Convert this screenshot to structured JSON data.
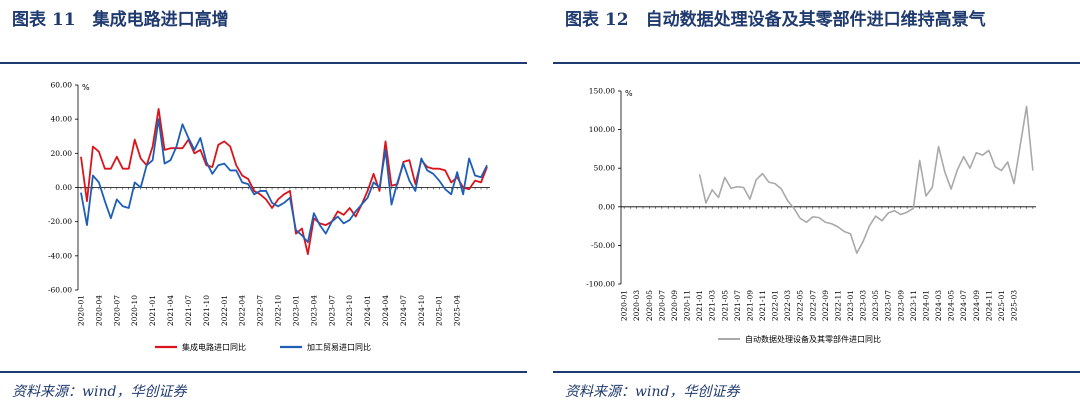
{
  "left": {
    "figure_title": "图表 11　集成电路进口高增",
    "source": "资料来源：wind，华创证券"
  },
  "right": {
    "figure_title": "图表 12　自动数据处理设备及其零部件进口维持高景气",
    "source": "资料来源：wind，华创证券"
  },
  "colors": {
    "red": "#d9151b",
    "blue": "#1d5fb8",
    "gray": "#a9a9a9",
    "accent": "#1f3a6e"
  },
  "chart_data": [
    {
      "type": "line",
      "unit": "%",
      "ylim": [
        -60,
        60
      ],
      "yticks": [
        "-60.00",
        "-40.00",
        "-20.00",
        "0.00",
        "20.00",
        "40.00",
        "60.00"
      ],
      "xticks": [
        "2020-01",
        "2020-04",
        "2020-07",
        "2020-10",
        "2021-01",
        "2021-04",
        "2021-07",
        "2021-10",
        "2022-01",
        "2022-04",
        "2022-07",
        "2022-10",
        "2023-01",
        "2023-04",
        "2023-07",
        "2023-10",
        "2024-01",
        "2024-04",
        "2024-07",
        "2024-10",
        "2025-01",
        "2025-04"
      ],
      "legend_position": "bottom",
      "series": [
        {
          "name": "集成电路进口同比",
          "color": "#d9151b",
          "values": [
            18,
            -8,
            24,
            21,
            11,
            11,
            18,
            11,
            11,
            28,
            17,
            13,
            24,
            46,
            22,
            23,
            23,
            23,
            28,
            20,
            22,
            13,
            12,
            25,
            27,
            24,
            13,
            7,
            5,
            -2,
            -4,
            -7,
            -12,
            -7,
            -4,
            -2,
            -27,
            -24,
            -39,
            -18,
            -21,
            -22,
            -20,
            -14,
            -16,
            -12,
            -17,
            -10,
            -2,
            8,
            -2,
            27,
            1,
            2,
            15,
            16,
            2,
            16,
            12,
            11,
            11,
            10,
            3,
            6,
            0,
            -1,
            4,
            3,
            12
          ]
        },
        {
          "name": "加工贸易进口同比",
          "color": "#1d5fb8",
          "values": [
            -3,
            -22,
            7,
            3,
            -8,
            -18,
            -7,
            -11,
            -12,
            3,
            0,
            13,
            16,
            40,
            14,
            16,
            24,
            37,
            29,
            22,
            29,
            15,
            8,
            13,
            14,
            10,
            10,
            3,
            2,
            -4,
            -2,
            -2,
            -9,
            -11,
            -9,
            -6,
            -25,
            -28,
            -32,
            -15,
            -22,
            -27,
            -20,
            -17,
            -21,
            -19,
            -14,
            -10,
            -6,
            3,
            0,
            22,
            -10,
            3,
            14,
            4,
            -2,
            17,
            10,
            8,
            4,
            -1,
            -4,
            9,
            -4,
            17,
            7,
            6,
            13
          ]
        }
      ]
    },
    {
      "type": "line",
      "unit": "%",
      "ylim": [
        -100,
        150
      ],
      "yticks": [
        "-100.00",
        "-50.00",
        "0.00",
        "50.00",
        "100.00",
        "150.00"
      ],
      "xticks": [
        "2020-01",
        "2020-03",
        "2020-05",
        "2020-07",
        "2020-09",
        "2020-11",
        "2021-01",
        "2021-03",
        "2021-05",
        "2021-07",
        "2021-09",
        "2021-11",
        "2022-01",
        "2022-03",
        "2022-05",
        "2022-07",
        "2022-09",
        "2022-11",
        "2023-01",
        "2023-03",
        "2023-05",
        "2023-07",
        "2023-09",
        "2023-11",
        "2024-01",
        "2024-03",
        "2024-05",
        "2024-07",
        "2024-09",
        "2024-11",
        "2025-01",
        "2025-03"
      ],
      "legend_position": "bottom",
      "series": [
        {
          "name": "自动数据处理设备及其零部件进口同比",
          "color": "#a9a9a9",
          "values": [
            null,
            null,
            null,
            null,
            null,
            null,
            null,
            null,
            null,
            null,
            null,
            null,
            42,
            5,
            22,
            12,
            38,
            24,
            26,
            25,
            10,
            35,
            43,
            32,
            30,
            23,
            8,
            -2,
            -15,
            -20,
            -13,
            -14,
            -20,
            -22,
            -26,
            -32,
            -35,
            -60,
            -45,
            -25,
            -12,
            -18,
            -8,
            -5,
            -10,
            -7,
            -2,
            60,
            14,
            25,
            78,
            45,
            23,
            48,
            65,
            50,
            70,
            67,
            73,
            52,
            47,
            58,
            30,
            80,
            130,
            47
          ]
        }
      ]
    }
  ]
}
